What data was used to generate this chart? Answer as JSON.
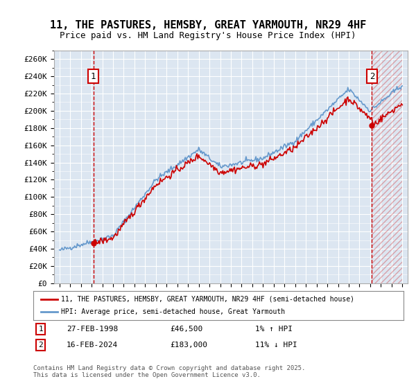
{
  "title_line1": "11, THE PASTURES, HEMSBY, GREAT YARMOUTH, NR29 4HF",
  "title_line2": "Price paid vs. HM Land Registry's House Price Index (HPI)",
  "ylabel_ticks": [
    "£0",
    "£20K",
    "£40K",
    "£60K",
    "£80K",
    "£100K",
    "£120K",
    "£140K",
    "£160K",
    "£180K",
    "£200K",
    "£220K",
    "£240K",
    "£260K"
  ],
  "ytick_values": [
    0,
    20000,
    40000,
    60000,
    80000,
    100000,
    120000,
    140000,
    160000,
    180000,
    200000,
    220000,
    240000,
    260000
  ],
  "xlim_start": 1994.5,
  "xlim_end": 2027.5,
  "ylim_min": 0,
  "ylim_max": 270000,
  "bg_color": "#dce6f1",
  "outer_bg_color": "#ffffff",
  "grid_color": "#ffffff",
  "transaction1_date": "27-FEB-1998",
  "transaction1_price": 46500,
  "transaction1_price_str": "£46,500",
  "transaction1_hpi": "1% ↑ HPI",
  "transaction2_date": "16-FEB-2024",
  "transaction2_price": 183000,
  "transaction2_price_str": "£183,000",
  "transaction2_hpi": "11% ↓ HPI",
  "legend_line1": "11, THE PASTURES, HEMSBY, GREAT YARMOUTH, NR29 4HF (semi-detached house)",
  "legend_line2": "HPI: Average price, semi-detached house, Great Yarmouth",
  "footer": "Contains HM Land Registry data © Crown copyright and database right 2025.\nThis data is licensed under the Open Government Licence v3.0.",
  "line_color_price": "#cc0000",
  "line_color_hpi": "#6699cc",
  "marker_vline_color": "#cc0000"
}
